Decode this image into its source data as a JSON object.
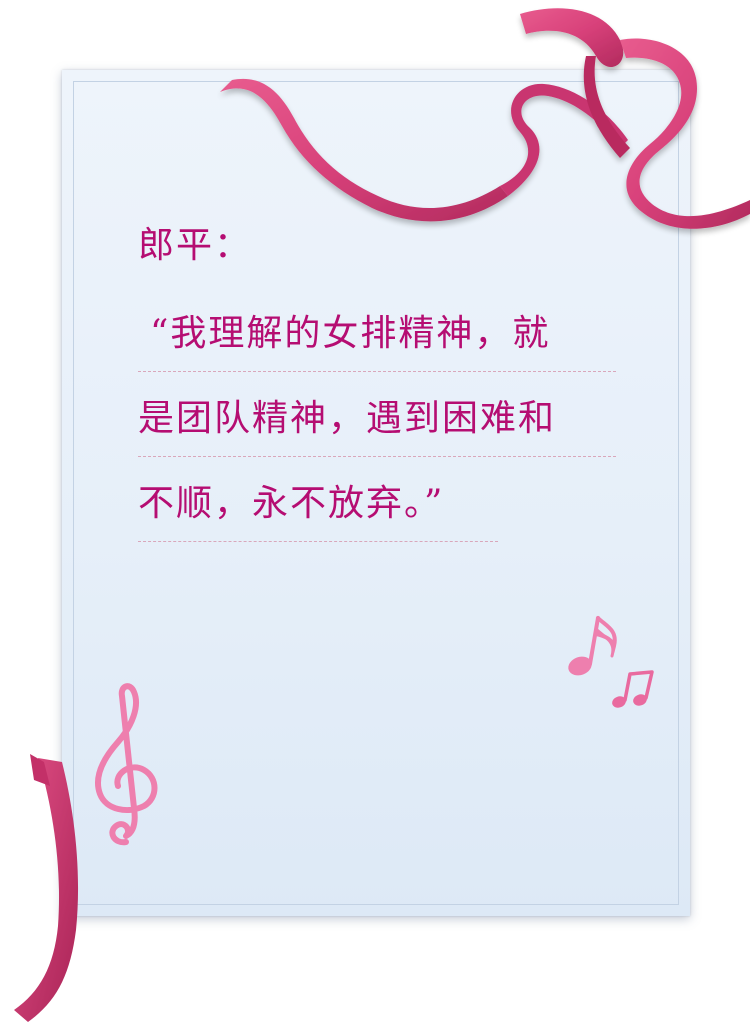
{
  "speaker": "郎平：",
  "quote": {
    "line1": "“我理解的女排精神，就",
    "line2": "是团队精神，遇到困难和",
    "line3": "不顺，永不放弃。”"
  },
  "colors": {
    "text": "#b50d72",
    "ribbon": "#d8417a",
    "notes": "#ee7fae",
    "card": "#e9f1fa"
  },
  "icons": [
    "treble-clef-icon",
    "eighth-note-icon",
    "beamed-notes-icon"
  ]
}
